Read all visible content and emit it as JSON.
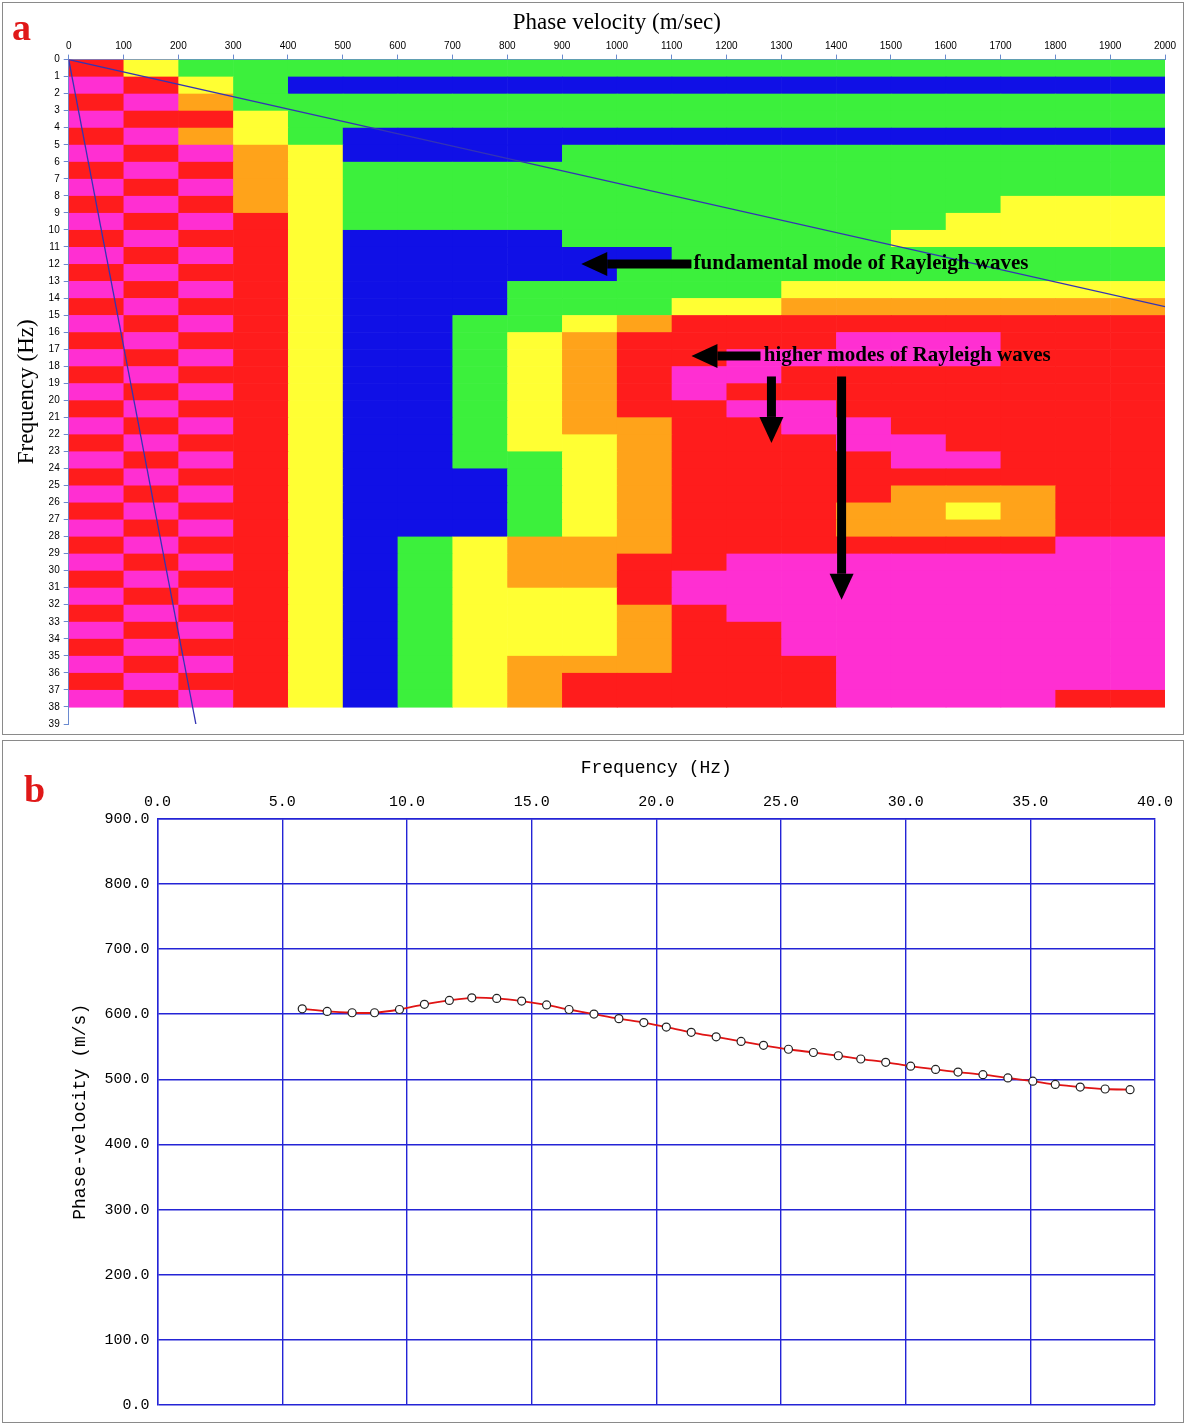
{
  "chart_data": [
    {
      "type": "heatmap",
      "panel_label": "a",
      "x_label": "Phase velocity (m/sec)",
      "y_label": "Frequency (Hz)",
      "xlim": [
        0,
        2000
      ],
      "xticks": [
        0,
        100,
        200,
        300,
        400,
        500,
        600,
        700,
        800,
        900,
        1000,
        1100,
        1200,
        1300,
        1400,
        1500,
        1600,
        1700,
        1800,
        1900,
        2000
      ],
      "ylim": [
        0,
        39
      ],
      "yticks": [
        0,
        1,
        2,
        3,
        4,
        5,
        6,
        7,
        8,
        9,
        10,
        11,
        12,
        13,
        14,
        15,
        16,
        17,
        18,
        19,
        20,
        21,
        22,
        23,
        24,
        25,
        26,
        27,
        28,
        29,
        30,
        31,
        32,
        33,
        34,
        35,
        36,
        37,
        38,
        39
      ],
      "grid": false,
      "colors": [
        "#1010e6",
        "#3cf03c",
        "#ffff33",
        "#ffa31a",
        "#ff1c1c",
        "#ff2fd2"
      ],
      "x_bins": [
        0,
        100,
        200,
        300,
        400,
        500,
        600,
        700,
        800,
        900,
        1000,
        1100,
        1200,
        1300,
        1400,
        1500,
        1600,
        1700,
        1800,
        1900,
        2000
      ],
      "y_bins": [
        0,
        1,
        2,
        3,
        4,
        5,
        6,
        7,
        8,
        9,
        10,
        11,
        12,
        13,
        14,
        15,
        16,
        17,
        18,
        19,
        20,
        21,
        22,
        23,
        24,
        25,
        26,
        27,
        28,
        29,
        30,
        31,
        32,
        33,
        34,
        35,
        36,
        37,
        38
      ],
      "cells": [
        [
          4,
          2,
          1,
          1,
          1,
          1,
          1,
          1,
          1,
          1,
          1,
          1,
          1,
          1,
          1,
          1,
          1,
          1,
          1,
          1
        ],
        [
          5,
          4,
          2,
          1,
          0,
          0,
          0,
          0,
          0,
          0,
          0,
          0,
          0,
          0,
          0,
          0,
          0,
          0,
          0,
          0
        ],
        [
          4,
          5,
          3,
          1,
          1,
          1,
          1,
          1,
          1,
          1,
          1,
          1,
          1,
          1,
          1,
          1,
          1,
          1,
          1,
          1
        ],
        [
          5,
          4,
          4,
          2,
          1,
          1,
          1,
          1,
          1,
          1,
          1,
          1,
          1,
          1,
          1,
          1,
          1,
          1,
          1,
          1
        ],
        [
          4,
          5,
          3,
          2,
          1,
          0,
          0,
          0,
          0,
          0,
          0,
          0,
          0,
          0,
          0,
          0,
          0,
          0,
          0,
          0
        ],
        [
          5,
          4,
          5,
          3,
          2,
          0,
          0,
          0,
          0,
          1,
          1,
          1,
          1,
          1,
          1,
          1,
          1,
          1,
          1,
          1
        ],
        [
          4,
          5,
          4,
          3,
          2,
          1,
          1,
          1,
          1,
          1,
          1,
          1,
          1,
          1,
          1,
          1,
          1,
          1,
          1,
          1
        ],
        [
          5,
          4,
          5,
          3,
          2,
          1,
          1,
          1,
          1,
          1,
          1,
          1,
          1,
          1,
          1,
          1,
          1,
          1,
          1,
          1
        ],
        [
          4,
          5,
          4,
          3,
          2,
          1,
          1,
          1,
          1,
          1,
          1,
          1,
          1,
          1,
          1,
          1,
          1,
          2,
          2,
          2
        ],
        [
          5,
          4,
          5,
          4,
          2,
          1,
          1,
          1,
          1,
          1,
          1,
          1,
          1,
          1,
          1,
          1,
          2,
          2,
          2,
          2
        ],
        [
          4,
          5,
          4,
          4,
          2,
          0,
          0,
          0,
          0,
          1,
          1,
          1,
          1,
          1,
          1,
          2,
          2,
          2,
          2,
          2
        ],
        [
          5,
          4,
          5,
          4,
          2,
          0,
          0,
          0,
          0,
          0,
          0,
          1,
          1,
          1,
          1,
          1,
          1,
          1,
          1,
          1
        ],
        [
          4,
          5,
          4,
          4,
          2,
          0,
          0,
          0,
          0,
          0,
          1,
          1,
          1,
          1,
          1,
          1,
          1,
          1,
          1,
          1
        ],
        [
          5,
          4,
          5,
          4,
          2,
          0,
          0,
          0,
          1,
          1,
          1,
          1,
          1,
          2,
          2,
          2,
          2,
          2,
          2,
          2
        ],
        [
          4,
          5,
          4,
          4,
          2,
          0,
          0,
          0,
          1,
          1,
          1,
          2,
          2,
          3,
          3,
          3,
          3,
          3,
          3,
          3
        ],
        [
          5,
          4,
          5,
          4,
          2,
          0,
          0,
          1,
          1,
          2,
          3,
          4,
          4,
          4,
          4,
          4,
          4,
          4,
          4,
          4
        ],
        [
          4,
          5,
          4,
          4,
          2,
          0,
          0,
          1,
          2,
          3,
          4,
          4,
          4,
          4,
          5,
          5,
          5,
          4,
          4,
          4
        ],
        [
          5,
          4,
          5,
          4,
          2,
          0,
          0,
          1,
          2,
          3,
          4,
          4,
          5,
          5,
          5,
          5,
          5,
          4,
          4,
          4
        ],
        [
          4,
          5,
          4,
          4,
          2,
          0,
          0,
          1,
          2,
          3,
          4,
          5,
          5,
          4,
          4,
          4,
          4,
          4,
          4,
          4
        ],
        [
          5,
          4,
          5,
          4,
          2,
          0,
          0,
          1,
          2,
          3,
          4,
          5,
          4,
          4,
          4,
          4,
          4,
          4,
          4,
          4
        ],
        [
          4,
          5,
          4,
          4,
          2,
          0,
          0,
          1,
          2,
          3,
          4,
          4,
          5,
          5,
          4,
          4,
          4,
          4,
          4,
          4
        ],
        [
          5,
          4,
          5,
          4,
          2,
          0,
          0,
          1,
          2,
          3,
          3,
          4,
          4,
          5,
          5,
          4,
          4,
          4,
          4,
          4
        ],
        [
          4,
          5,
          4,
          4,
          2,
          0,
          0,
          1,
          2,
          2,
          3,
          4,
          4,
          4,
          5,
          5,
          4,
          4,
          4,
          4
        ],
        [
          5,
          4,
          5,
          4,
          2,
          0,
          0,
          1,
          1,
          2,
          3,
          4,
          4,
          4,
          4,
          5,
          5,
          4,
          4,
          4
        ],
        [
          4,
          5,
          4,
          4,
          2,
          0,
          0,
          0,
          1,
          2,
          3,
          4,
          4,
          4,
          4,
          4,
          4,
          4,
          4,
          4
        ],
        [
          5,
          4,
          5,
          4,
          2,
          0,
          0,
          0,
          1,
          2,
          3,
          4,
          4,
          4,
          4,
          3,
          3,
          3,
          4,
          4
        ],
        [
          4,
          5,
          4,
          4,
          2,
          0,
          0,
          0,
          1,
          2,
          3,
          4,
          4,
          4,
          3,
          3,
          2,
          3,
          4,
          4
        ],
        [
          5,
          4,
          5,
          4,
          2,
          0,
          0,
          0,
          1,
          2,
          3,
          4,
          4,
          4,
          3,
          3,
          3,
          3,
          4,
          4
        ],
        [
          4,
          5,
          4,
          4,
          2,
          0,
          1,
          2,
          3,
          3,
          3,
          4,
          4,
          4,
          4,
          4,
          4,
          4,
          5,
          5
        ],
        [
          5,
          4,
          5,
          4,
          2,
          0,
          1,
          2,
          3,
          3,
          4,
          4,
          5,
          5,
          5,
          5,
          5,
          5,
          5,
          5
        ],
        [
          4,
          5,
          4,
          4,
          2,
          0,
          1,
          2,
          3,
          3,
          4,
          5,
          5,
          5,
          5,
          5,
          5,
          5,
          5,
          5
        ],
        [
          5,
          4,
          5,
          4,
          2,
          0,
          1,
          2,
          2,
          2,
          4,
          5,
          5,
          5,
          5,
          5,
          5,
          5,
          5,
          5
        ],
        [
          4,
          5,
          4,
          4,
          2,
          0,
          1,
          2,
          2,
          2,
          3,
          4,
          5,
          5,
          5,
          5,
          5,
          5,
          5,
          5
        ],
        [
          5,
          4,
          5,
          4,
          2,
          0,
          1,
          2,
          2,
          2,
          3,
          4,
          4,
          5,
          5,
          5,
          5,
          5,
          5,
          5
        ],
        [
          4,
          5,
          4,
          4,
          2,
          0,
          1,
          2,
          2,
          2,
          3,
          4,
          4,
          5,
          5,
          5,
          5,
          5,
          5,
          5
        ],
        [
          5,
          4,
          5,
          4,
          2,
          0,
          1,
          2,
          3,
          3,
          3,
          4,
          4,
          4,
          5,
          5,
          5,
          5,
          5,
          5
        ],
        [
          4,
          5,
          4,
          4,
          2,
          0,
          1,
          2,
          3,
          4,
          4,
          4,
          4,
          4,
          5,
          5,
          5,
          5,
          5,
          5
        ],
        [
          5,
          4,
          5,
          4,
          2,
          0,
          1,
          2,
          3,
          4,
          4,
          4,
          4,
          4,
          5,
          5,
          5,
          5,
          4,
          4
        ]
      ],
      "lines": [
        {
          "x": [
            0,
            2000
          ],
          "y": [
            0,
            14.5
          ],
          "color": "#3434b4"
        },
        {
          "x": [
            0,
            232
          ],
          "y": [
            0,
            39
          ],
          "color": "#3434b4"
        }
      ],
      "annotations": [
        {
          "text": "fundamental mode of Rayleigh waves",
          "x": 1140,
          "y": 12
        },
        {
          "text": "higher modes of Rayleigh waves",
          "x": 1268,
          "y": 17.4
        }
      ],
      "arrows": [
        {
          "x": [
            1136,
            935
          ],
          "y": [
            12,
            12
          ]
        },
        {
          "x": [
            1262,
            1136
          ],
          "y": [
            17.4,
            17.4
          ]
        },
        {
          "x": [
            1282,
            1282
          ],
          "y": [
            18.6,
            22.5
          ]
        },
        {
          "x": [
            1410,
            1410
          ],
          "y": [
            18.6,
            31.7
          ]
        }
      ]
    },
    {
      "type": "line",
      "panel_label": "b",
      "x_label": "Frequency (Hz)",
      "y_label": "Phase-velocity (m/s)",
      "xlim": [
        0,
        40
      ],
      "xticks": [
        {
          "value": 0,
          "label": "0.0"
        },
        {
          "value": 5,
          "label": "5.0"
        },
        {
          "value": 10,
          "label": "10.0"
        },
        {
          "value": 15,
          "label": "15.0"
        },
        {
          "value": 20,
          "label": "20.0"
        },
        {
          "value": 25,
          "label": "25.0"
        },
        {
          "value": 30,
          "label": "30.0"
        },
        {
          "value": 35,
          "label": "35.0"
        },
        {
          "value": 40,
          "label": "40.0"
        }
      ],
      "ylim": [
        0,
        900
      ],
      "yticks": [
        {
          "value": 0,
          "label": "0.0"
        },
        {
          "value": 100,
          "label": "100.0"
        },
        {
          "value": 200,
          "label": "200.0"
        },
        {
          "value": 300,
          "label": "300.0"
        },
        {
          "value": 400,
          "label": "400.0"
        },
        {
          "value": 500,
          "label": "500.0"
        },
        {
          "value": 600,
          "label": "600.0"
        },
        {
          "value": 700,
          "label": "700.0"
        },
        {
          "value": 800,
          "label": "800.0"
        },
        {
          "value": 900,
          "label": "900.0"
        }
      ],
      "grid": true,
      "color": "#e01414",
      "marker": "circle",
      "x": [
        5.8,
        6.8,
        7.8,
        8.7,
        9.7,
        10.7,
        11.7,
        12.6,
        13.6,
        14.6,
        15.6,
        16.5,
        17.5,
        18.5,
        19.5,
        20.4,
        21.4,
        22.4,
        23.4,
        24.3,
        25.3,
        26.3,
        27.3,
        28.2,
        29.2,
        30.2,
        31.2,
        32.1,
        33.1,
        34.1,
        35.1,
        36.0,
        37.0,
        38.0,
        39.0
      ],
      "values": [
        608,
        604,
        602,
        602,
        607,
        615,
        621,
        625,
        624,
        620,
        614,
        607,
        600,
        593,
        587,
        580,
        572,
        565,
        558,
        552,
        546,
        541,
        536,
        531,
        526,
        520,
        515,
        511,
        507,
        502,
        497,
        492,
        488,
        485,
        484
      ]
    }
  ]
}
